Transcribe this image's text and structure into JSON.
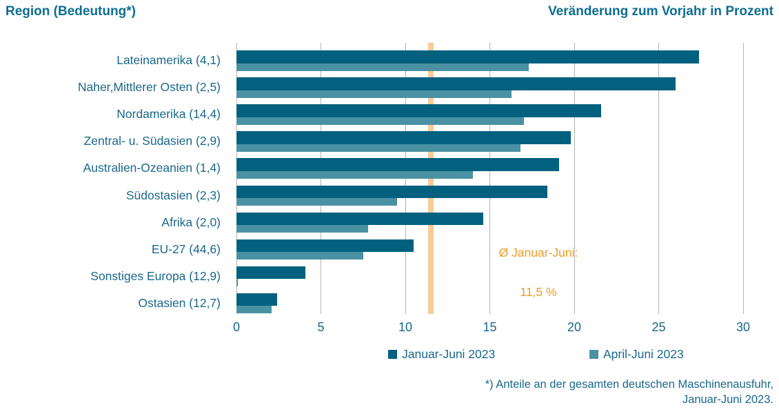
{
  "header": {
    "left_title": "Region (Bedeutung*)",
    "right_title": "Veränderung zum Vorjahr in Prozent"
  },
  "chart_data": {
    "type": "bar",
    "orientation": "horizontal",
    "title": "Veränderung zum Vorjahr in Prozent",
    "categories": [
      "Lateinamerika (4,1)",
      "Naher,Mittlerer Osten (2,5)",
      "Nordamerika (14,4)",
      "Zentral- u. Südasien (2,9)",
      "Australien-Ozeanien (1,4)",
      "Südostasien (2,3)",
      "Afrika (2,0)",
      "EU-27 (44,6)",
      "Sonstiges Europa (12,9)",
      "Ostasien (12,7)"
    ],
    "series": [
      {
        "name": "Januar-Juni 2023",
        "color": "#03617f",
        "values": [
          27.4,
          26.0,
          21.6,
          19.8,
          19.1,
          18.4,
          14.6,
          10.5,
          4.1,
          2.4
        ]
      },
      {
        "name": "April-Juni 2023",
        "color": "#4a92a3",
        "values": [
          17.3,
          16.3,
          17.0,
          16.8,
          14.0,
          9.5,
          7.8,
          7.5,
          0.1,
          2.1
        ]
      }
    ],
    "xlim": [
      0,
      30
    ],
    "xticks": [
      0,
      5,
      10,
      15,
      20,
      25,
      30
    ],
    "grid": true,
    "gridline_color": "#b3b3b3",
    "legend_position": "bottom",
    "average_line": {
      "value": 11.5,
      "line_color": "#f9cb97",
      "label_line1": "Ø Januar-Juni:",
      "label_line2": "11,5 %",
      "label_color": "#ee9b27"
    }
  },
  "footnote": {
    "line1": "*) Anteile an der gesamten deutschen Maschinenausfuhr,",
    "line2": "Januar-Juni 2023."
  },
  "colors": {
    "title_text": "#0d6e91",
    "axis_text": "#19688b",
    "background": "#ffffff"
  }
}
